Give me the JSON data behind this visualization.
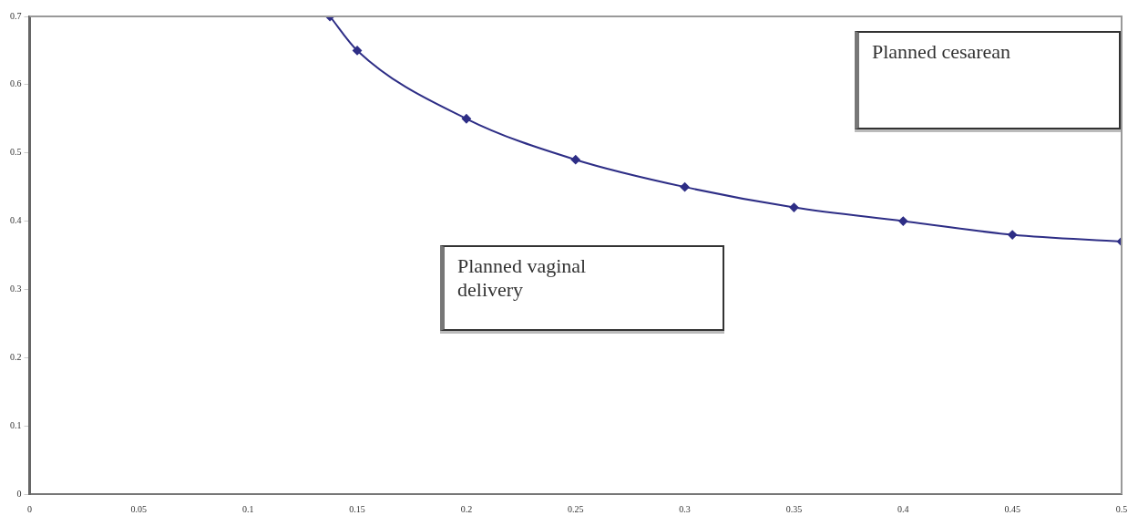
{
  "chart_data": {
    "type": "line",
    "x": [
      0.1375,
      0.15,
      0.2,
      0.25,
      0.3,
      0.35,
      0.4,
      0.45,
      0.5
    ],
    "series": [
      {
        "color": "#2e2e86",
        "values": [
          0.7,
          0.65,
          0.55,
          0.49,
          0.45,
          0.42,
          0.4,
          0.38,
          0.37
        ]
      }
    ],
    "xlim": [
      0,
      0.5
    ],
    "xticks": [
      0,
      0.05,
      0.1,
      0.15,
      0.2,
      0.25,
      0.3,
      0.35,
      0.4,
      0.45,
      0.5
    ],
    "ylim": [
      0,
      0.7
    ],
    "yticks": [
      0,
      0.1,
      0.2,
      0.3,
      0.4,
      0.5,
      0.6,
      0.7
    ],
    "grid": false,
    "legend": false,
    "marker": "diamond",
    "line_style": "solid",
    "annotations": [
      "Planned cesarean",
      "Planned vaginal delivery"
    ]
  }
}
